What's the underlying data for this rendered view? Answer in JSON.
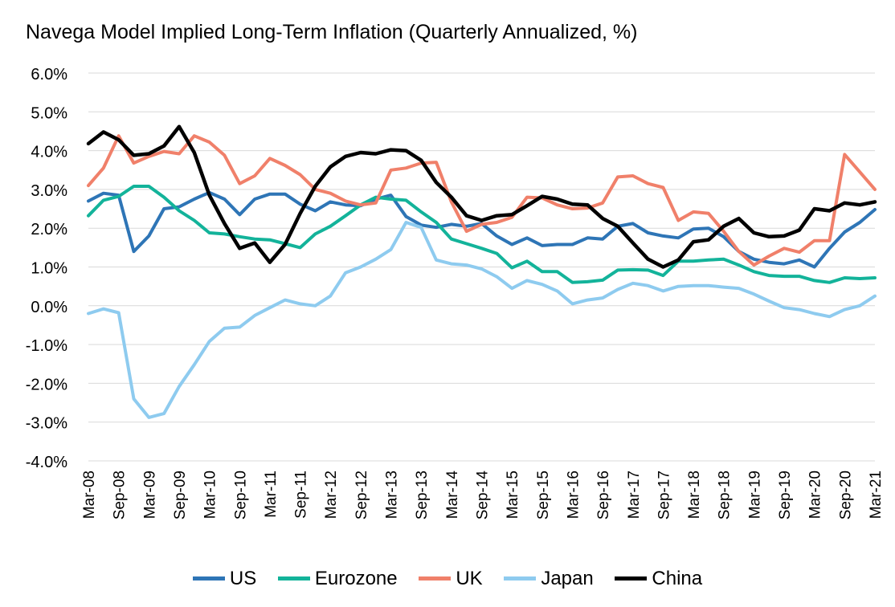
{
  "chart_data": {
    "type": "line",
    "title": "Navega Model Implied Long-Term Inflation (Quarterly Annualized, %)",
    "xlabel": "",
    "ylabel": "",
    "ylim": [
      -4,
      6
    ],
    "yticks": [
      "-4.0%",
      "-3.0%",
      "-2.0%",
      "-1.0%",
      "0.0%",
      "1.0%",
      "2.0%",
      "3.0%",
      "4.0%",
      "5.0%",
      "6.0%"
    ],
    "ytick_values": [
      -4,
      -3,
      -2,
      -1,
      0,
      1,
      2,
      3,
      4,
      5,
      6
    ],
    "grid": true,
    "legend_position": "bottom",
    "xtick_labels": [
      "Mar-08",
      "Sep-08",
      "Mar-09",
      "Sep-09",
      "Mar-10",
      "Sep-10",
      "Mar-11",
      "Sep-11",
      "Mar-12",
      "Sep-12",
      "Mar-13",
      "Sep-13",
      "Mar-14",
      "Sep-14",
      "Mar-15",
      "Sep-15",
      "Mar-16",
      "Sep-16",
      "Mar-17",
      "Sep-17",
      "Mar-18",
      "Sep-18",
      "Mar-19",
      "Sep-19",
      "Mar-20",
      "Sep-20",
      "Mar-21"
    ],
    "categories": [
      "Mar-08",
      "Jun-08",
      "Sep-08",
      "Dec-08",
      "Mar-09",
      "Jun-09",
      "Sep-09",
      "Dec-09",
      "Mar-10",
      "Jun-10",
      "Sep-10",
      "Dec-10",
      "Mar-11",
      "Jun-11",
      "Sep-11",
      "Dec-11",
      "Mar-12",
      "Jun-12",
      "Sep-12",
      "Dec-12",
      "Mar-13",
      "Jun-13",
      "Sep-13",
      "Dec-13",
      "Mar-14",
      "Jun-14",
      "Sep-14",
      "Dec-14",
      "Mar-15",
      "Jun-15",
      "Sep-15",
      "Dec-15",
      "Mar-16",
      "Jun-16",
      "Sep-16",
      "Dec-16",
      "Mar-17",
      "Jun-17",
      "Sep-17",
      "Dec-17",
      "Mar-18",
      "Jun-18",
      "Sep-18",
      "Dec-18",
      "Mar-19",
      "Jun-19",
      "Sep-19",
      "Dec-19",
      "Mar-20",
      "Jun-20",
      "Sep-20",
      "Dec-20",
      "Mar-21"
    ],
    "series": [
      {
        "name": "US",
        "color": "#2e75b6",
        "values": [
          2.7,
          2.9,
          2.85,
          1.4,
          1.8,
          2.5,
          2.55,
          2.75,
          2.92,
          2.75,
          2.35,
          2.75,
          2.88,
          2.88,
          2.62,
          2.45,
          2.68,
          2.6,
          2.58,
          2.75,
          2.85,
          2.3,
          2.08,
          2.02,
          2.1,
          2.05,
          2.12,
          1.8,
          1.58,
          1.75,
          1.55,
          1.58,
          1.58,
          1.75,
          1.72,
          2.05,
          2.12,
          1.88,
          1.8,
          1.75,
          1.98,
          2.0,
          1.78,
          1.4,
          1.2,
          1.12,
          1.08,
          1.18,
          1.0,
          1.48,
          1.9,
          2.15,
          2.48
        ]
      },
      {
        "name": "Eurozone",
        "color": "#13b39a",
        "values": [
          2.32,
          2.72,
          2.82,
          3.08,
          3.08,
          2.8,
          2.45,
          2.2,
          1.88,
          1.85,
          1.78,
          1.72,
          1.7,
          1.6,
          1.5,
          1.85,
          2.05,
          2.32,
          2.6,
          2.8,
          2.75,
          2.72,
          2.42,
          2.15,
          1.72,
          1.6,
          1.48,
          1.35,
          0.98,
          1.15,
          0.88,
          0.88,
          0.6,
          0.62,
          0.66,
          0.92,
          0.93,
          0.92,
          0.78,
          1.15,
          1.15,
          1.18,
          1.2,
          1.05,
          0.88,
          0.78,
          0.76,
          0.76,
          0.65,
          0.6,
          0.72,
          0.7,
          0.72
        ]
      },
      {
        "name": "UK",
        "color": "#f0806a",
        "values": [
          3.1,
          3.55,
          4.38,
          3.68,
          3.85,
          3.98,
          3.92,
          4.38,
          4.22,
          3.88,
          3.15,
          3.35,
          3.8,
          3.62,
          3.38,
          3.0,
          2.9,
          2.7,
          2.6,
          2.65,
          3.5,
          3.55,
          3.68,
          3.7,
          2.68,
          1.92,
          2.1,
          2.15,
          2.28,
          2.8,
          2.78,
          2.6,
          2.5,
          2.52,
          2.65,
          3.32,
          3.35,
          3.15,
          3.05,
          2.2,
          2.42,
          2.38,
          1.92,
          1.4,
          1.05,
          1.28,
          1.48,
          1.38,
          1.68,
          1.68,
          3.9,
          3.45,
          3.0
        ]
      },
      {
        "name": "Japan",
        "color": "#8ecbef",
        "values": [
          -0.2,
          -0.08,
          -0.18,
          -2.4,
          -2.88,
          -2.78,
          -2.08,
          -1.52,
          -0.92,
          -0.58,
          -0.55,
          -0.25,
          -0.05,
          0.15,
          0.05,
          0.0,
          0.25,
          0.85,
          1.0,
          1.2,
          1.45,
          2.15,
          2.02,
          1.18,
          1.08,
          1.05,
          0.95,
          0.75,
          0.45,
          0.65,
          0.55,
          0.38,
          0.05,
          0.15,
          0.2,
          0.42,
          0.58,
          0.52,
          0.38,
          0.5,
          0.52,
          0.52,
          0.48,
          0.45,
          0.3,
          0.12,
          -0.05,
          -0.1,
          -0.2,
          -0.28,
          -0.1,
          0.0,
          0.25
        ]
      },
      {
        "name": "China",
        "color": "#000000",
        "values": [
          4.18,
          4.48,
          4.28,
          3.88,
          3.92,
          4.12,
          4.62,
          3.95,
          2.85,
          2.12,
          1.48,
          1.62,
          1.12,
          1.58,
          2.38,
          3.08,
          3.58,
          3.85,
          3.95,
          3.92,
          4.02,
          4.0,
          3.75,
          3.18,
          2.8,
          2.32,
          2.2,
          2.32,
          2.35,
          2.58,
          2.82,
          2.75,
          2.62,
          2.6,
          2.25,
          2.05,
          1.62,
          1.2,
          1.0,
          1.18,
          1.65,
          1.7,
          2.05,
          2.25,
          1.88,
          1.78,
          1.8,
          1.95,
          2.5,
          2.45,
          2.65,
          2.6,
          2.68
        ]
      }
    ]
  }
}
